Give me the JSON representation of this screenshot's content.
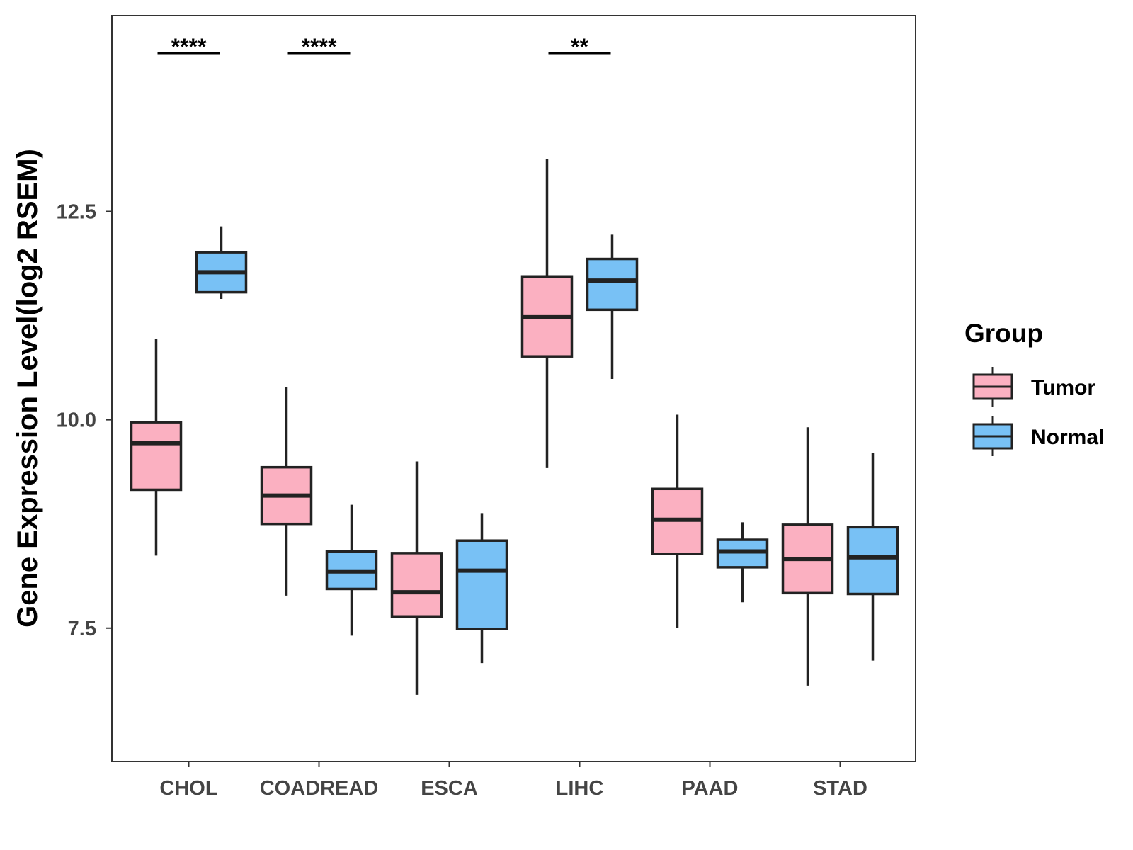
{
  "chart_data": {
    "type": "boxplot",
    "title": "",
    "xlabel": "",
    "ylabel": "Gene Expression Level(log2 RSEM)",
    "ylim": [
      5.9,
      14.85
    ],
    "yticks": [
      7.5,
      10.0,
      12.5
    ],
    "ytick_labels": [
      "7.5",
      "10.0",
      "12.5"
    ],
    "categories": [
      "CHOL",
      "COADREAD",
      "ESCA",
      "LIHC",
      "PAAD",
      "STAD"
    ],
    "legend": {
      "title": "Group",
      "position": "right",
      "entries": [
        {
          "name": "Tumor",
          "color": "#FBB0C1"
        },
        {
          "name": "Normal",
          "color": "#78C1F5"
        }
      ]
    },
    "series": [
      {
        "name": "Tumor",
        "color": "#FBB0C1",
        "boxes": [
          {
            "category": "CHOL",
            "whisker_low": 8.37,
            "q1": 9.16,
            "median": 9.72,
            "q3": 9.97,
            "whisker_high": 10.97
          },
          {
            "category": "COADREAD",
            "whisker_low": 7.89,
            "q1": 8.75,
            "median": 9.09,
            "q3": 9.43,
            "whisker_high": 10.39
          },
          {
            "category": "ESCA",
            "whisker_low": 6.7,
            "q1": 7.64,
            "median": 7.93,
            "q3": 8.4,
            "whisker_high": 9.5
          },
          {
            "category": "LIHC",
            "whisker_low": 9.42,
            "q1": 10.76,
            "median": 11.23,
            "q3": 11.72,
            "whisker_high": 13.13
          },
          {
            "category": "PAAD",
            "whisker_low": 7.5,
            "q1": 8.39,
            "median": 8.8,
            "q3": 9.17,
            "whisker_high": 10.06
          },
          {
            "category": "STAD",
            "whisker_low": 6.81,
            "q1": 7.92,
            "median": 8.33,
            "q3": 8.74,
            "whisker_high": 9.91
          }
        ]
      },
      {
        "name": "Normal",
        "color": "#78C1F5",
        "boxes": [
          {
            "category": "CHOL",
            "whisker_low": 11.45,
            "q1": 11.53,
            "median": 11.77,
            "q3": 12.01,
            "whisker_high": 12.32
          },
          {
            "category": "COADREAD",
            "whisker_low": 7.41,
            "q1": 7.97,
            "median": 8.18,
            "q3": 8.42,
            "whisker_high": 8.98
          },
          {
            "category": "ESCA",
            "whisker_low": 7.08,
            "q1": 7.49,
            "median": 8.19,
            "q3": 8.55,
            "whisker_high": 8.88
          },
          {
            "category": "LIHC",
            "whisker_low": 10.49,
            "q1": 11.32,
            "median": 11.67,
            "q3": 11.93,
            "whisker_high": 12.22
          },
          {
            "category": "PAAD",
            "whisker_low": 7.81,
            "q1": 8.23,
            "median": 8.42,
            "q3": 8.56,
            "whisker_high": 8.77
          },
          {
            "category": "STAD",
            "whisker_low": 7.11,
            "q1": 7.91,
            "median": 8.35,
            "q3": 8.71,
            "whisker_high": 9.6
          }
        ]
      }
    ],
    "annotations": [
      {
        "category": "CHOL",
        "text": "****"
      },
      {
        "category": "COADREAD",
        "text": "****"
      },
      {
        "category": "LIHC",
        "text": "**"
      }
    ]
  }
}
